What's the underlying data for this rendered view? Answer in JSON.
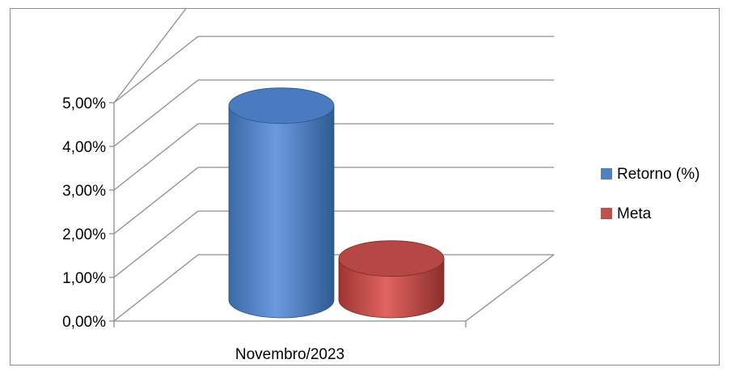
{
  "chart_data": {
    "type": "bar",
    "style": "3d-cylinder",
    "categories": [
      "Novembro/2023"
    ],
    "series": [
      {
        "name": "Retorno (%)",
        "values": [
          4.45
        ],
        "color": "#4f81bd"
      },
      {
        "name": "Meta",
        "values": [
          0.95
        ],
        "color": "#c0504d"
      }
    ],
    "yticks": [
      "0,00%",
      "1,00%",
      "2,00%",
      "3,00%",
      "4,00%",
      "5,00%"
    ],
    "ylim": [
      0,
      5
    ],
    "title": "",
    "xlabel": "",
    "ylabel": "",
    "grid": true,
    "legend_position": "right"
  }
}
